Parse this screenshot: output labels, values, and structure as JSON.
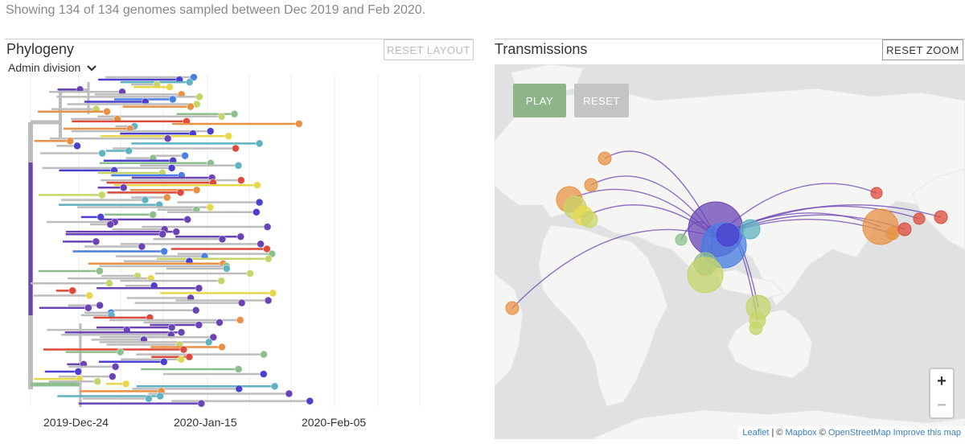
{
  "summary": "Showing 134 of 134 genomes sampled between Dec 2019 and Feb 2020.",
  "phylogeny": {
    "title": "Phylogeny",
    "reset_button": "RESET LAYOUT",
    "color_by": "Admin division",
    "axis_dates": [
      "2019-Dec-24",
      "2020-Jan-15",
      "2020-Feb-05"
    ]
  },
  "transmissions": {
    "title": "Transmissions",
    "reset_zoom_button": "RESET ZOOM",
    "play_button": "PLAY",
    "reset_button": "RESET",
    "zoom_in": "+",
    "zoom_out": "−",
    "attribution": {
      "leaflet": "Leaflet",
      "sep1": " | © ",
      "mapbox": "Mapbox",
      "sep2": " © ",
      "osm": "OpenStreetMap",
      "improve": "Improve this map"
    }
  },
  "colors": {
    "purple": "#6a44b5",
    "indigo": "#4b3fd0",
    "blue": "#4a7fe3",
    "teal": "#5fb3c0",
    "green": "#8cbf8c",
    "yellowgreen": "#c7d46a",
    "yellow": "#e6d84a",
    "orange": "#e89144",
    "red": "#de4a3a",
    "gray": "#bdbdbd"
  }
}
